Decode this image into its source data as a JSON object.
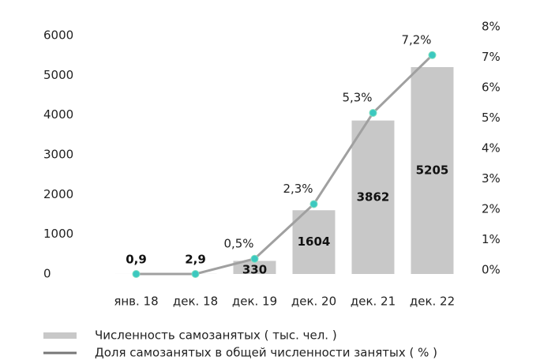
{
  "chart_data": {
    "type": "bar_line",
    "categories": [
      "янв. 18",
      "дек. 18",
      "дек. 19",
      "дек. 20",
      "дек. 21",
      "дек. 22"
    ],
    "series": [
      {
        "name": "Численность самозанятых ( тыс. чел. )",
        "type": "bar",
        "color": "#c8c8c8",
        "values": [
          0.9,
          2.9,
          330,
          1604,
          3862,
          5205
        ],
        "value_labels": [
          "0,9",
          "2,9",
          "330",
          "1604",
          "3862",
          "5205"
        ]
      },
      {
        "name": "Доля самозанятых в общей численности занятых ( % )",
        "type": "line",
        "axis": "y2",
        "color": "#a0a0a0",
        "marker_color": "#3cc8c0",
        "values": [
          0,
          0,
          0.5,
          2.3,
          5.3,
          7.2
        ],
        "value_labels": [
          null,
          null,
          "0,5%",
          "2,3%",
          "5,3%",
          "7,2%"
        ]
      }
    ],
    "ylim": [
      0,
      6000
    ],
    "yticks": [
      0,
      1000,
      2000,
      3000,
      4000,
      5000,
      6000
    ],
    "y2lim": [
      0,
      8
    ],
    "y2ticks": [
      {
        "value": 0,
        "label": "0%"
      },
      {
        "value": 1,
        "label": "1%"
      },
      {
        "value": 2,
        "label": "2%"
      },
      {
        "value": 3,
        "label": "3%"
      },
      {
        "value": 4,
        "label": "4%"
      },
      {
        "value": 5,
        "label": "5%"
      },
      {
        "value": 6,
        "label": "6%"
      },
      {
        "value": 7,
        "label": "7%"
      },
      {
        "value": 8,
        "label": "8%"
      }
    ],
    "grid": false
  }
}
